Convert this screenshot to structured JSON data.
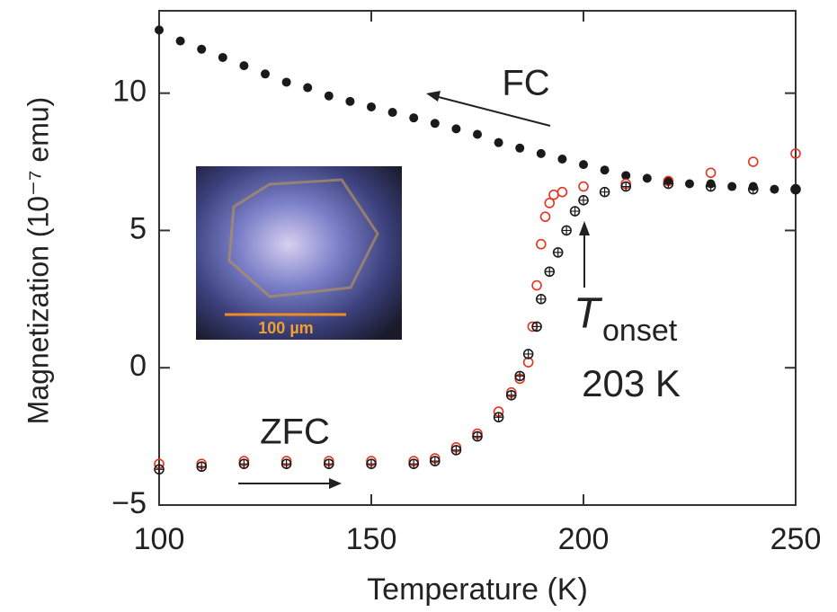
{
  "chart_data": {
    "type": "scatter",
    "x_label": "Temperature (K)",
    "y_label": "Magnetization (10⁻⁷ emu)",
    "xlim": [
      100,
      250
    ],
    "xticks": [
      100,
      150,
      200,
      250
    ],
    "ylim": [
      -5,
      13
    ],
    "yticks": [
      {
        "value": -5,
        "label": "−5"
      },
      0,
      5,
      10
    ],
    "series": [
      {
        "name": "FC",
        "color": "#1a1a1a",
        "marker": "filled",
        "x": [
          100,
          105,
          110,
          115,
          120,
          125,
          130,
          135,
          140,
          145,
          150,
          155,
          160,
          165,
          170,
          175,
          180,
          185,
          190,
          195,
          200,
          205,
          210,
          215,
          220,
          225,
          230,
          235,
          240,
          245,
          250
        ],
        "values": [
          12.3,
          11.9,
          11.6,
          11.3,
          11.0,
          10.7,
          10.4,
          10.2,
          9.9,
          9.7,
          9.5,
          9.3,
          9.1,
          8.9,
          8.7,
          8.5,
          8.2,
          8.0,
          7.8,
          7.6,
          7.4,
          7.2,
          7.0,
          6.9,
          6.8,
          6.7,
          6.7,
          6.6,
          6.6,
          6.5,
          6.5
        ]
      },
      {
        "color": "#e8321e",
        "marker": "open",
        "x": [
          100,
          110,
          120,
          130,
          140,
          150,
          160,
          165,
          170,
          175,
          180,
          183,
          185,
          187,
          188,
          189,
          190,
          191,
          192,
          193,
          195,
          200,
          210,
          220,
          230,
          240,
          250
        ],
        "values": [
          -3.5,
          -3.5,
          -3.4,
          -3.4,
          -3.4,
          -3.4,
          -3.4,
          -3.3,
          -2.9,
          -2.4,
          -1.6,
          -0.9,
          -0.4,
          0.2,
          1.5,
          3.0,
          4.5,
          5.5,
          6.0,
          6.3,
          6.4,
          6.6,
          6.7,
          6.8,
          7.1,
          7.5,
          7.8
        ]
      },
      {
        "name": "ZFC",
        "color": "#1a1a1a",
        "marker": "crossed",
        "x": [
          100,
          110,
          120,
          130,
          140,
          150,
          160,
          165,
          170,
          175,
          180,
          183,
          185,
          187,
          189,
          190,
          192,
          194,
          196,
          198,
          200,
          205,
          210,
          220,
          230,
          240,
          250
        ],
        "values": [
          -3.7,
          -3.6,
          -3.5,
          -3.5,
          -3.5,
          -3.5,
          -3.5,
          -3.4,
          -3.0,
          -2.5,
          -1.8,
          -1.0,
          -0.3,
          0.5,
          1.5,
          2.5,
          3.5,
          4.2,
          5.0,
          5.7,
          6.1,
          6.4,
          6.6,
          6.7,
          6.6,
          6.5,
          6.5
        ]
      }
    ],
    "annotations": {
      "T": "T",
      "onset": "onset",
      "t_value": "203 K",
      "scale_bar": "100 µm"
    }
  }
}
